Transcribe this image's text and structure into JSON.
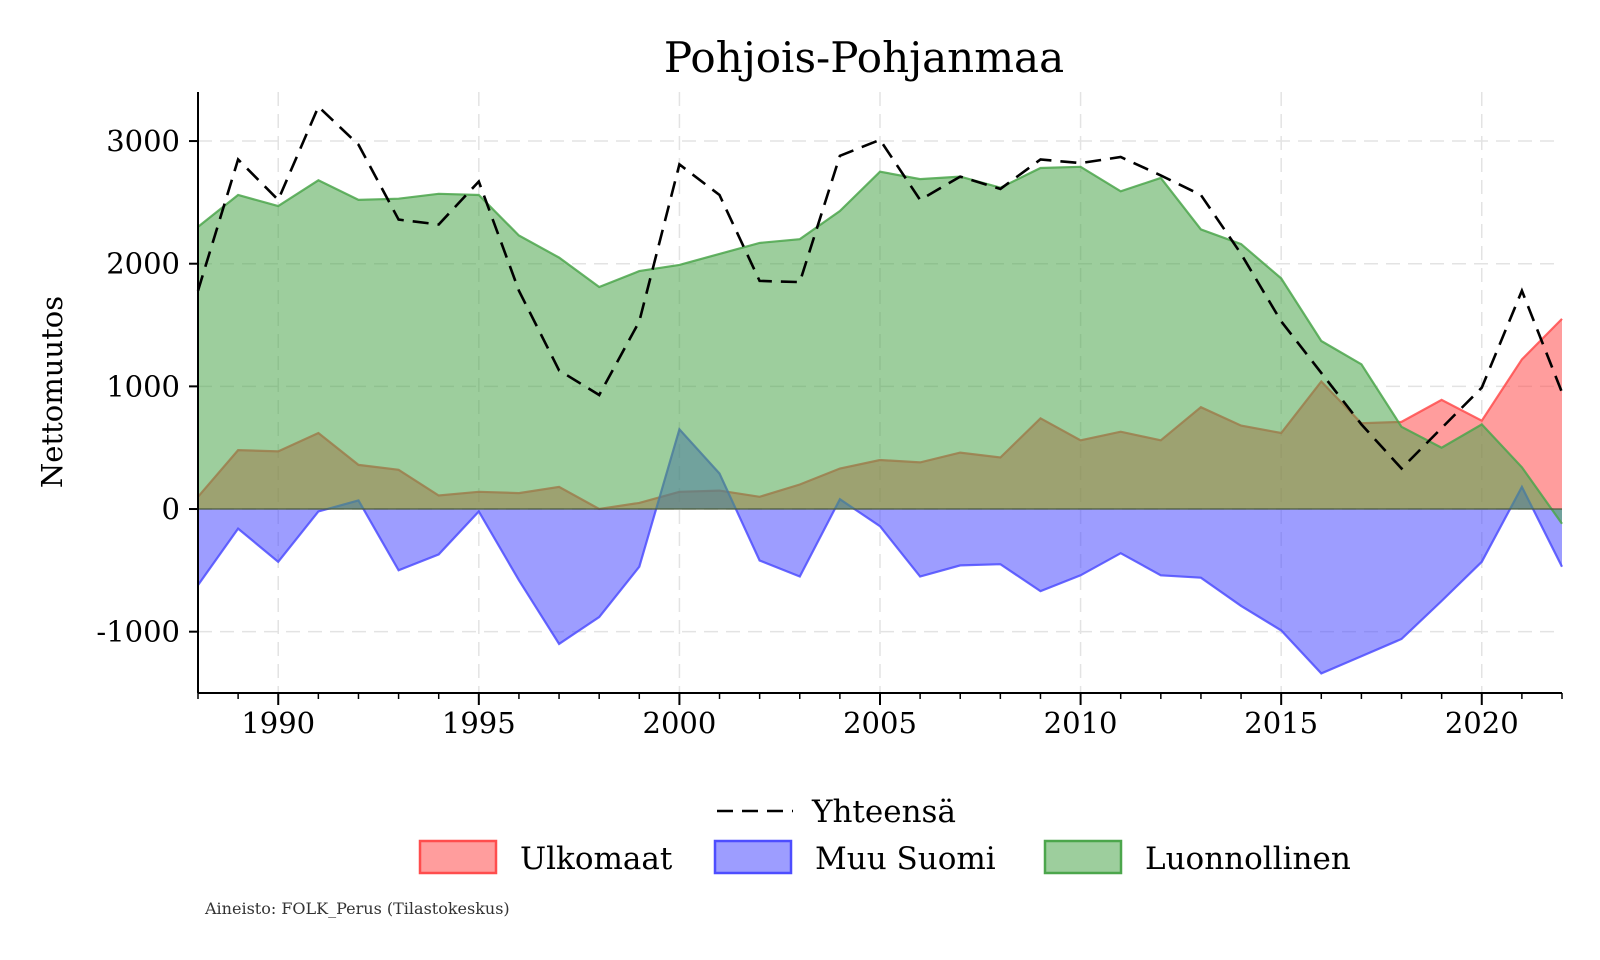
{
  "chart_data": {
    "type": "area",
    "title": "Pohjois-Pohjanmaa",
    "xlabel": "",
    "ylabel": "Nettomuutos",
    "xlim": [
      1988,
      2022
    ],
    "ylim": [
      -1500,
      3400
    ],
    "grid": true,
    "xticks": [
      1990,
      1995,
      2000,
      2005,
      2010,
      2015,
      2020
    ],
    "yticks": [
      -1000,
      0,
      1000,
      2000,
      3000
    ],
    "x": [
      1988,
      1989,
      1990,
      1991,
      1992,
      1993,
      1994,
      1995,
      1996,
      1997,
      1998,
      1999,
      2000,
      2001,
      2002,
      2003,
      2004,
      2005,
      2006,
      2007,
      2008,
      2009,
      2010,
      2011,
      2012,
      2013,
      2014,
      2015,
      2016,
      2017,
      2018,
      2019,
      2020,
      2021,
      2022
    ],
    "series": [
      {
        "name": "Ulkomaat",
        "kind": "area",
        "color": "#ff4d4d",
        "values": [
          100,
          480,
          470,
          620,
          360,
          320,
          110,
          140,
          130,
          180,
          0,
          50,
          140,
          150,
          100,
          200,
          330,
          400,
          380,
          460,
          420,
          740,
          560,
          630,
          560,
          830,
          680,
          620,
          1040,
          700,
          710,
          890,
          720,
          1220,
          1550
        ]
      },
      {
        "name": "Muu Suomi",
        "kind": "area",
        "color": "#4d4dff",
        "values": [
          -620,
          -160,
          -430,
          -20,
          70,
          -500,
          -370,
          -20,
          -580,
          -1100,
          -880,
          -470,
          650,
          290,
          -420,
          -550,
          80,
          -140,
          -550,
          -460,
          -450,
          -670,
          -540,
          -360,
          -540,
          -560,
          -790,
          -990,
          -1340,
          -1200,
          -1060,
          -750,
          -430,
          180,
          -470
        ]
      },
      {
        "name": "Luonnollinen",
        "kind": "area",
        "color": "#4ca64c",
        "values": [
          2300,
          2560,
          2470,
          2680,
          2520,
          2530,
          2570,
          2560,
          2230,
          2050,
          1810,
          1940,
          1990,
          2080,
          2170,
          2200,
          2430,
          2750,
          2690,
          2710,
          2620,
          2780,
          2790,
          2590,
          2700,
          2280,
          2160,
          1880,
          1370,
          1180,
          670,
          500,
          690,
          340,
          -120
        ]
      },
      {
        "name": "Yhteensä",
        "kind": "line",
        "color": "#000000",
        "values": [
          1780,
          2850,
          2520,
          3280,
          2970,
          2360,
          2320,
          2670,
          1780,
          1130,
          930,
          1530,
          2810,
          2560,
          1860,
          1850,
          2880,
          3010,
          2520,
          2710,
          2610,
          2850,
          2820,
          2870,
          2720,
          2560,
          2080,
          1530,
          1110,
          690,
          330,
          660,
          990,
          1780,
          950
        ]
      }
    ],
    "legend": {
      "position": "bottom-center",
      "entries": [
        "Yhteensä",
        "Ulkomaat",
        "Muu Suomi",
        "Luonnollinen"
      ]
    },
    "source_note": "Aineisto: FOLK_Perus (Tilastokeskus)"
  }
}
